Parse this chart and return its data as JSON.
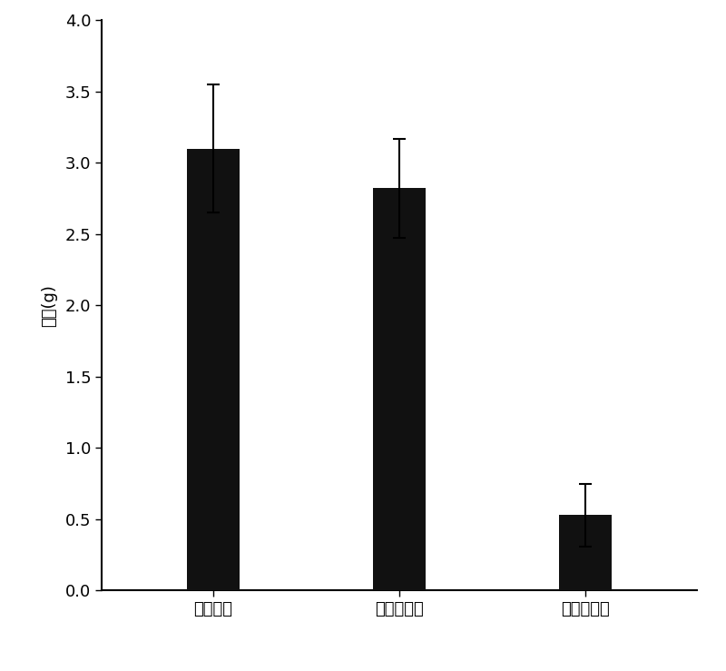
{
  "categories": [
    "生理盐水",
    "游离阿霉素",
    "阿霉素胶束"
  ],
  "values": [
    3.1,
    2.82,
    0.53
  ],
  "errors": [
    0.45,
    0.35,
    0.22
  ],
  "bar_color": "#111111",
  "bar_width": 0.28,
  "ylabel": "瘤重(g)",
  "ylim": [
    0,
    4
  ],
  "yticks": [
    0,
    0.5,
    1.0,
    1.5,
    2.0,
    2.5,
    3.0,
    3.5,
    4.0
  ],
  "background_color": "#ffffff",
  "ylabel_fontsize": 13,
  "tick_fontsize": 13,
  "xlabel_fontsize": 13,
  "error_capsize": 5,
  "error_linewidth": 1.5
}
